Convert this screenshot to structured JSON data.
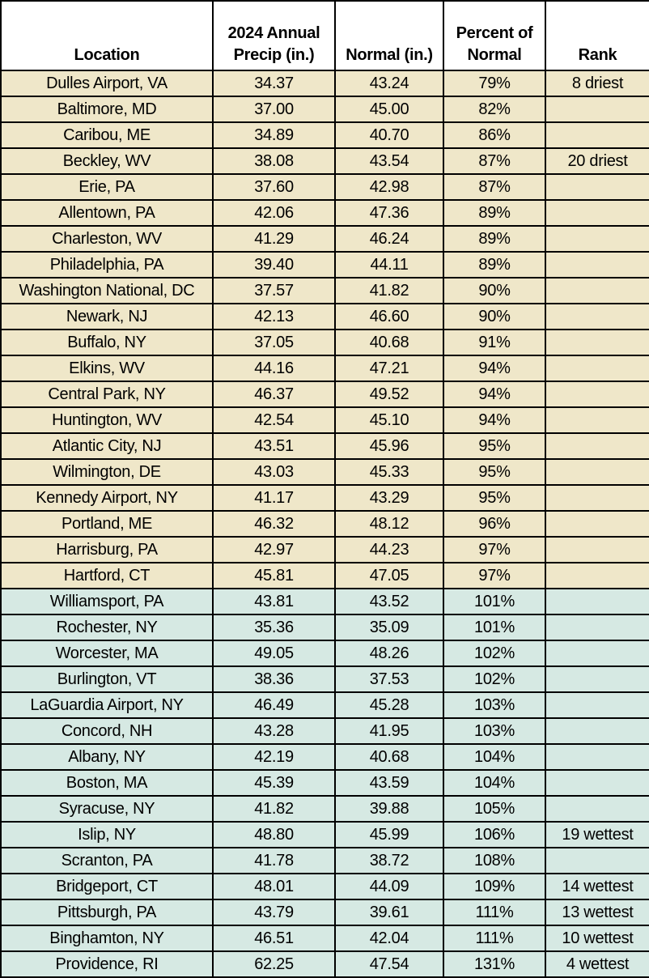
{
  "chart_data": {
    "type": "table",
    "columns": [
      {
        "id": "location",
        "label": "Location"
      },
      {
        "id": "precip",
        "label": "2024 Annual\nPrecip (in.)"
      },
      {
        "id": "normal",
        "label": "Normal (in.)"
      },
      {
        "id": "percent",
        "label": "Percent of\nNormal"
      },
      {
        "id": "rank",
        "label": "Rank"
      }
    ],
    "rows": [
      {
        "location": "Dulles Airport, VA",
        "precip": "34.37",
        "normal": "43.24",
        "percent": "79%",
        "rank": "8 driest",
        "band": "below"
      },
      {
        "location": "Baltimore, MD",
        "precip": "37.00",
        "normal": "45.00",
        "percent": "82%",
        "rank": "",
        "band": "below"
      },
      {
        "location": "Caribou, ME",
        "precip": "34.89",
        "normal": "40.70",
        "percent": "86%",
        "rank": "",
        "band": "below"
      },
      {
        "location": "Beckley, WV",
        "precip": "38.08",
        "normal": "43.54",
        "percent": "87%",
        "rank": "20 driest",
        "band": "below"
      },
      {
        "location": "Erie, PA",
        "precip": "37.60",
        "normal": "42.98",
        "percent": "87%",
        "rank": "",
        "band": "below"
      },
      {
        "location": "Allentown, PA",
        "precip": "42.06",
        "normal": "47.36",
        "percent": "89%",
        "rank": "",
        "band": "below"
      },
      {
        "location": "Charleston, WV",
        "precip": "41.29",
        "normal": "46.24",
        "percent": "89%",
        "rank": "",
        "band": "below"
      },
      {
        "location": "Philadelphia, PA",
        "precip": "39.40",
        "normal": "44.11",
        "percent": "89%",
        "rank": "",
        "band": "below"
      },
      {
        "location": "Washington National, DC",
        "precip": "37.57",
        "normal": "41.82",
        "percent": "90%",
        "rank": "",
        "band": "below"
      },
      {
        "location": "Newark, NJ",
        "precip": "42.13",
        "normal": "46.60",
        "percent": "90%",
        "rank": "",
        "band": "below"
      },
      {
        "location": "Buffalo, NY",
        "precip": "37.05",
        "normal": "40.68",
        "percent": "91%",
        "rank": "",
        "band": "below"
      },
      {
        "location": "Elkins, WV",
        "precip": "44.16",
        "normal": "47.21",
        "percent": "94%",
        "rank": "",
        "band": "below"
      },
      {
        "location": "Central Park, NY",
        "precip": "46.37",
        "normal": "49.52",
        "percent": "94%",
        "rank": "",
        "band": "below"
      },
      {
        "location": "Huntington, WV",
        "precip": "42.54",
        "normal": "45.10",
        "percent": "94%",
        "rank": "",
        "band": "below"
      },
      {
        "location": "Atlantic City, NJ",
        "precip": "43.51",
        "normal": "45.96",
        "percent": "95%",
        "rank": "",
        "band": "below"
      },
      {
        "location": "Wilmington, DE",
        "precip": "43.03",
        "normal": "45.33",
        "percent": "95%",
        "rank": "",
        "band": "below"
      },
      {
        "location": "Kennedy Airport, NY",
        "precip": "41.17",
        "normal": "43.29",
        "percent": "95%",
        "rank": "",
        "band": "below"
      },
      {
        "location": "Portland, ME",
        "precip": "46.32",
        "normal": "48.12",
        "percent": "96%",
        "rank": "",
        "band": "below"
      },
      {
        "location": "Harrisburg, PA",
        "precip": "42.97",
        "normal": "44.23",
        "percent": "97%",
        "rank": "",
        "band": "below"
      },
      {
        "location": "Hartford, CT",
        "precip": "45.81",
        "normal": "47.05",
        "percent": "97%",
        "rank": "",
        "band": "below"
      },
      {
        "location": "Williamsport, PA",
        "precip": "43.81",
        "normal": "43.52",
        "percent": "101%",
        "rank": "",
        "band": "above"
      },
      {
        "location": "Rochester, NY",
        "precip": "35.36",
        "normal": "35.09",
        "percent": "101%",
        "rank": "",
        "band": "above"
      },
      {
        "location": "Worcester, MA",
        "precip": "49.05",
        "normal": "48.26",
        "percent": "102%",
        "rank": "",
        "band": "above"
      },
      {
        "location": "Burlington, VT",
        "precip": "38.36",
        "normal": "37.53",
        "percent": "102%",
        "rank": "",
        "band": "above"
      },
      {
        "location": "LaGuardia Airport, NY",
        "precip": "46.49",
        "normal": "45.28",
        "percent": "103%",
        "rank": "",
        "band": "above"
      },
      {
        "location": "Concord, NH",
        "precip": "43.28",
        "normal": "41.95",
        "percent": "103%",
        "rank": "",
        "band": "above"
      },
      {
        "location": "Albany, NY",
        "precip": "42.19",
        "normal": "40.68",
        "percent": "104%",
        "rank": "",
        "band": "above"
      },
      {
        "location": "Boston, MA",
        "precip": "45.39",
        "normal": "43.59",
        "percent": "104%",
        "rank": "",
        "band": "above"
      },
      {
        "location": "Syracuse, NY",
        "precip": "41.82",
        "normal": "39.88",
        "percent": "105%",
        "rank": "",
        "band": "above"
      },
      {
        "location": "Islip, NY",
        "precip": "48.80",
        "normal": "45.99",
        "percent": "106%",
        "rank": "19 wettest",
        "band": "above"
      },
      {
        "location": "Scranton, PA",
        "precip": "41.78",
        "normal": "38.72",
        "percent": "108%",
        "rank": "",
        "band": "above"
      },
      {
        "location": "Bridgeport, CT",
        "precip": "48.01",
        "normal": "44.09",
        "percent": "109%",
        "rank": "14 wettest",
        "band": "above"
      },
      {
        "location": "Pittsburgh, PA",
        "precip": "43.79",
        "normal": "39.61",
        "percent": "111%",
        "rank": "13 wettest",
        "band": "above"
      },
      {
        "location": "Binghamton, NY",
        "precip": "46.51",
        "normal": "42.04",
        "percent": "111%",
        "rank": "10 wettest",
        "band": "above"
      },
      {
        "location": "Providence, RI",
        "precip": "62.25",
        "normal": "47.54",
        "percent": "131%",
        "rank": "4 wettest",
        "band": "above"
      }
    ]
  },
  "colors": {
    "below_normal_bg": "#EFE7C9",
    "above_normal_bg": "#D6E9E3",
    "border": "#000000",
    "header_bg": "#FFFFFF",
    "text": "#000000"
  }
}
